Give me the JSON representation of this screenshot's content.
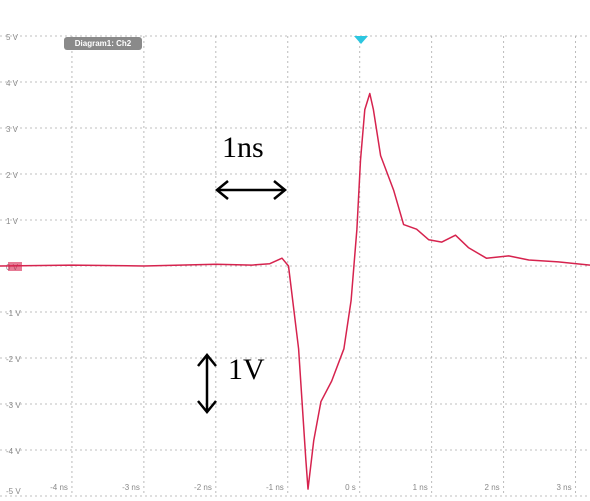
{
  "chart_data": {
    "type": "line",
    "label": "Diagram1: Ch2",
    "annotations": [
      "1ns",
      "1V"
    ],
    "color": "#d6234e",
    "grid": true,
    "xlim": [
      -5,
      3.2
    ],
    "ylim": [
      -5,
      5
    ],
    "xticks": [
      {
        "value": -4,
        "label": "-4 ns"
      },
      {
        "value": -3,
        "label": "-3 ns"
      },
      {
        "value": -2,
        "label": "-2 ns"
      },
      {
        "value": -1,
        "label": "-1 ns"
      },
      {
        "value": 0,
        "label": "0 s"
      },
      {
        "value": 1,
        "label": "1 ns"
      },
      {
        "value": 2,
        "label": "2 ns"
      },
      {
        "value": 3,
        "label": "3 ns"
      }
    ],
    "yticks": [
      {
        "value": 5,
        "label": "5 V"
      },
      {
        "value": 4,
        "label": "4 V"
      },
      {
        "value": 3,
        "label": "3 V"
      },
      {
        "value": 2,
        "label": "2 V"
      },
      {
        "value": 1,
        "label": "1 V"
      },
      {
        "value": 0,
        "label": "0 V"
      },
      {
        "value": -1,
        "label": "-1 V"
      },
      {
        "value": -2,
        "label": "-2 V"
      },
      {
        "value": -3,
        "label": "-3 V"
      },
      {
        "value": -4,
        "label": "-4 V"
      },
      {
        "value": -5,
        "label": "-5 V"
      }
    ],
    "x": [
      -5,
      -4,
      -3,
      -2,
      -1.5,
      -1.25,
      -1.08,
      -0.99,
      -0.85,
      -0.75,
      -0.72,
      -0.64,
      -0.54,
      -0.39,
      -0.22,
      -0.12,
      -0.04,
      0.01,
      0.07,
      0.14,
      0.19,
      0.29,
      0.47,
      0.61,
      0.79,
      0.96,
      1.14,
      1.33,
      1.51,
      1.76,
      2.07,
      2.35,
      2.76,
      3.2
    ],
    "values": [
      0,
      0.02,
      0,
      0.04,
      0.02,
      0.05,
      0.17,
      0,
      -1.8,
      -4.2,
      -4.85,
      -3.8,
      -2.95,
      -2.5,
      -1.8,
      -0.75,
      0.8,
      2.3,
      3.4,
      3.75,
      3.4,
      2.4,
      1.65,
      0.9,
      0.8,
      0.57,
      0.52,
      0.67,
      0.4,
      0.17,
      0.22,
      0.13,
      0.09,
      0.02
    ]
  }
}
